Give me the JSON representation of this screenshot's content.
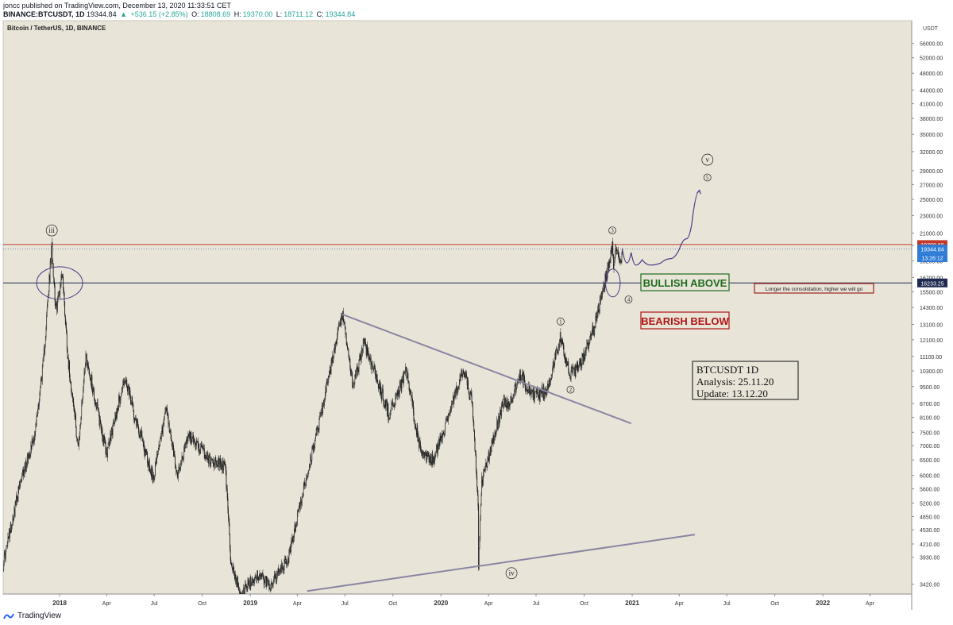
{
  "header": {
    "publisher_line": "joncc published on TradingView.com, December 13, 2020 11:33:51 CET",
    "symbol_line": {
      "symbol": "BINANCE:BTCUSDT, 1D",
      "last": "19344.84",
      "change": "+536.15 (+2.85%)",
      "o_label": "O:",
      "o": "18808.69",
      "h_label": "H:",
      "h": "19370.00",
      "l_label": "L:",
      "l": "18711.12",
      "c_label": "C:",
      "c": "19344.84"
    }
  },
  "chart_data": {
    "type": "candlestick",
    "title": "Bitcoin / TetherUS, 1D, BINANCE",
    "y_scale": "log",
    "y_unit": "USDT",
    "x_range": [
      "2017-09-15",
      "2022-06-20"
    ],
    "y_range": [
      3250,
      63000
    ],
    "y_ticks": [
      3420,
      3930,
      4210,
      4530,
      4850,
      5200,
      5600,
      6000,
      6500,
      7000,
      7500,
      8100,
      8700,
      9500,
      10300,
      11100,
      12100,
      13100,
      14300,
      15500,
      16700,
      18200,
      19700,
      21000,
      23000,
      25000,
      27000,
      29000,
      32000,
      35000,
      38000,
      41000,
      44000,
      48000,
      52000,
      56000
    ],
    "y_tick_labels": [
      "3420.00",
      "3930.00",
      "4210.00",
      "4530.00",
      "4850.00",
      "5200.00",
      "5600.00",
      "6000.00",
      "6500.00",
      "7000.00",
      "7500.00",
      "8100.00",
      "8700.00",
      "9500.00",
      "10300.00",
      "11100.00",
      "12100.00",
      "13100.00",
      "14300.00",
      "15500.00",
      "16700.00",
      "18200.00",
      "19700.00",
      "21000.00",
      "23000.00",
      "25000.00",
      "27000.00",
      "29000.00",
      "32000.00",
      "35000.00",
      "38000.00",
      "41000.00",
      "44000.00",
      "48000.00",
      "52000.00",
      "56000.00"
    ],
    "x_ticks": [
      {
        "date": "2018-01-01",
        "label": "2018",
        "bold": true
      },
      {
        "date": "2018-04-01",
        "label": "Apr"
      },
      {
        "date": "2018-07-01",
        "label": "Jul"
      },
      {
        "date": "2018-10-01",
        "label": "Oct"
      },
      {
        "date": "2019-01-01",
        "label": "2019",
        "bold": true
      },
      {
        "date": "2019-04-01",
        "label": "Apr"
      },
      {
        "date": "2019-07-01",
        "label": "Jul"
      },
      {
        "date": "2019-10-01",
        "label": "Oct"
      },
      {
        "date": "2020-01-01",
        "label": "2020",
        "bold": true
      },
      {
        "date": "2020-04-01",
        "label": "Apr"
      },
      {
        "date": "2020-07-01",
        "label": "Jul"
      },
      {
        "date": "2020-10-01",
        "label": "Oct"
      },
      {
        "date": "2021-01-01",
        "label": "2021",
        "bold": true
      },
      {
        "date": "2021-04-01",
        "label": "Apr"
      },
      {
        "date": "2021-07-01",
        "label": "Jul"
      },
      {
        "date": "2021-10-01",
        "label": "Oct"
      },
      {
        "date": "2022-01-01",
        "label": "2022",
        "bold": true
      },
      {
        "date": "2022-04-01",
        "label": "Apr"
      }
    ],
    "price_path": [
      [
        "2017-09-15",
        3800
      ],
      [
        "2017-10-15",
        5600
      ],
      [
        "2017-11-15",
        7500
      ],
      [
        "2017-12-01",
        10800
      ],
      [
        "2017-12-17",
        19700
      ],
      [
        "2017-12-25",
        14000
      ],
      [
        "2018-01-06",
        17200
      ],
      [
        "2018-01-17",
        11000
      ],
      [
        "2018-02-06",
        6900
      ],
      [
        "2018-02-20",
        11200
      ],
      [
        "2018-04-01",
        6700
      ],
      [
        "2018-05-05",
        9900
      ],
      [
        "2018-06-29",
        5900
      ],
      [
        "2018-07-24",
        8400
      ],
      [
        "2018-08-14",
        6000
      ],
      [
        "2018-09-05",
        7400
      ],
      [
        "2018-10-15",
        6500
      ],
      [
        "2018-11-14",
        6300
      ],
      [
        "2018-11-25",
        3800
      ],
      [
        "2018-12-15",
        3250
      ],
      [
        "2019-01-15",
        3600
      ],
      [
        "2019-02-08",
        3400
      ],
      [
        "2019-03-15",
        3900
      ],
      [
        "2019-04-02",
        4900
      ],
      [
        "2019-05-14",
        8000
      ],
      [
        "2019-06-26",
        13800
      ],
      [
        "2019-07-17",
        9400
      ],
      [
        "2019-08-06",
        12000
      ],
      [
        "2019-09-24",
        8200
      ],
      [
        "2019-10-26",
        10300
      ],
      [
        "2019-11-25",
        6600
      ],
      [
        "2019-12-18",
        6500
      ],
      [
        "2020-02-13",
        10400
      ],
      [
        "2020-03-01",
        8600
      ],
      [
        "2020-03-12",
        5200
      ],
      [
        "2020-03-13",
        3800
      ],
      [
        "2020-03-19",
        5800
      ],
      [
        "2020-04-30",
        8800
      ],
      [
        "2020-05-10",
        8600
      ],
      [
        "2020-06-01",
        10100
      ],
      [
        "2020-06-25",
        9100
      ],
      [
        "2020-07-20",
        9200
      ],
      [
        "2020-08-17",
        12300
      ],
      [
        "2020-09-05",
        10000
      ],
      [
        "2020-09-25",
        10700
      ],
      [
        "2020-10-20",
        12800
      ],
      [
        "2020-11-05",
        15500
      ],
      [
        "2020-11-18",
        18000
      ],
      [
        "2020-11-24",
        19400
      ],
      [
        "2020-11-26",
        17100
      ],
      [
        "2020-12-01",
        19700
      ],
      [
        "2020-12-10",
        18200
      ],
      [
        "2020-12-13",
        19344.84
      ]
    ],
    "horizontal_levels": [
      {
        "price": 19798.68,
        "label": "19798.68",
        "color": "#c0392b"
      },
      {
        "price": 16233.25,
        "label": "16233.25",
        "color": "#1f2a50"
      }
    ],
    "last_price": {
      "price": 19344.84,
      "label": "19344.84",
      "countdown": "13:26:12",
      "color": "#2e7cd6"
    },
    "trendlines": [
      {
        "from": [
          "2019-06-26",
          13800
        ],
        "to": [
          "2020-12-30",
          7850
        ]
      },
      {
        "from": [
          "2019-04-20",
          3300
        ],
        "to": [
          "2021-05-01",
          4420
        ]
      }
    ],
    "projection_path": [
      [
        "2020-12-13",
        19344.84
      ],
      [
        "2020-12-22",
        18000
      ],
      [
        "2020-12-30",
        19000
      ],
      [
        "2021-01-08",
        17800
      ],
      [
        "2021-01-20",
        18300
      ],
      [
        "2021-02-05",
        17800
      ],
      [
        "2021-02-25",
        18000
      ],
      [
        "2021-03-15",
        18400
      ],
      [
        "2021-04-01",
        19300
      ],
      [
        "2021-04-15",
        20400
      ],
      [
        "2021-04-25",
        22000
      ],
      [
        "2021-05-10",
        26200
      ]
    ],
    "wave_labels": [
      {
        "text": "iii",
        "date": "2017-12-17",
        "price": 21300,
        "size": "large"
      },
      {
        "text": "3",
        "date": "2020-11-24",
        "price": 21300,
        "size": "small"
      },
      {
        "text": "4",
        "date": "2020-12-25",
        "price": 14900,
        "size": "small"
      },
      {
        "text": "1",
        "date": "2020-08-17",
        "price": 13300,
        "size": "small"
      },
      {
        "text": "2",
        "date": "2020-09-05",
        "price": 9350,
        "size": "small"
      },
      {
        "text": "v",
        "date": "2021-05-25",
        "price": 30700,
        "size": "large"
      },
      {
        "text": "5",
        "date": "2021-05-25",
        "price": 28000,
        "size": "small"
      },
      {
        "text": "iv",
        "date": "2020-05-15",
        "price": 3620,
        "size": "large"
      }
    ],
    "ellipses": [
      {
        "date": "2018-01-01",
        "price": 16233.25,
        "rx_days": 44,
        "ry_ratio": 0.035
      },
      {
        "date": "2020-11-25",
        "price": 16233.25,
        "rx_days": 14,
        "ry_ratio": 0.03
      }
    ],
    "annotations": {
      "bullish": "BULLISH ABOVE",
      "bearish": "BEARISH BELOW",
      "note": "Longer the consolidation, higher we will go",
      "info_lines": [
        "BTCUSDT 1D",
        "Analysis: 25.11.20",
        "Update: 13.12.20"
      ]
    },
    "colors": {
      "background": "#e8e4d8",
      "candles": "#1a1a1a",
      "trendline": "#8a85a2",
      "projection": "#4b3a88",
      "bullish": "#1e6b1e",
      "bearish": "#b01515"
    }
  },
  "footer": {
    "brand": "TradingView"
  }
}
